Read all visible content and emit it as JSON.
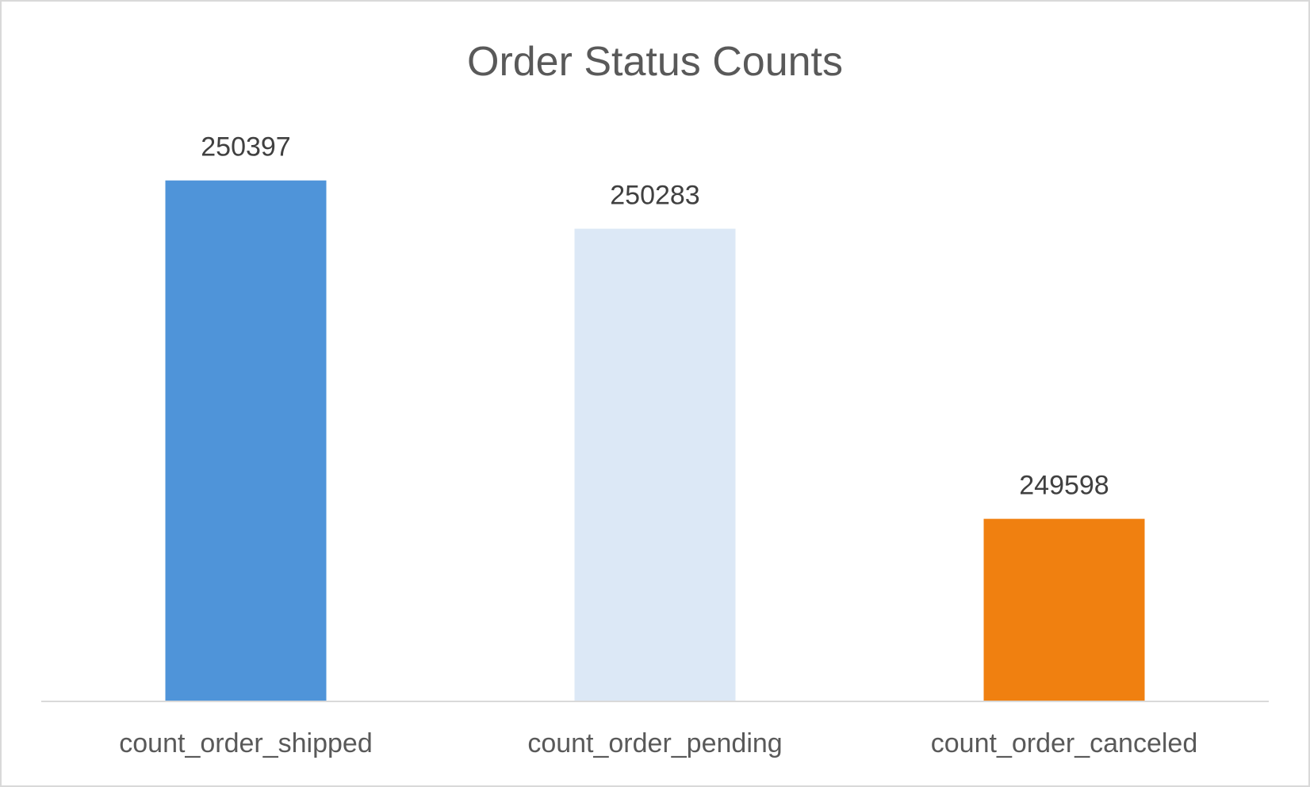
{
  "chart_data": {
    "type": "bar",
    "title": "Order Status Counts",
    "xlabel": "",
    "ylabel": "",
    "categories": [
      "count_order_shipped",
      "count_order_pending",
      "count_order_canceled"
    ],
    "values": [
      250397,
      250283,
      249598
    ],
    "data_labels": [
      "250397",
      "250283",
      "249598"
    ],
    "bar_colors": [
      "#4F94D9",
      "#DCE8F6",
      "#F08010"
    ],
    "axis_color": "#d9d9d9",
    "ylim": [
      249165,
      250475
    ],
    "grid": false,
    "legend": "none",
    "y_axis_visible": false
  }
}
